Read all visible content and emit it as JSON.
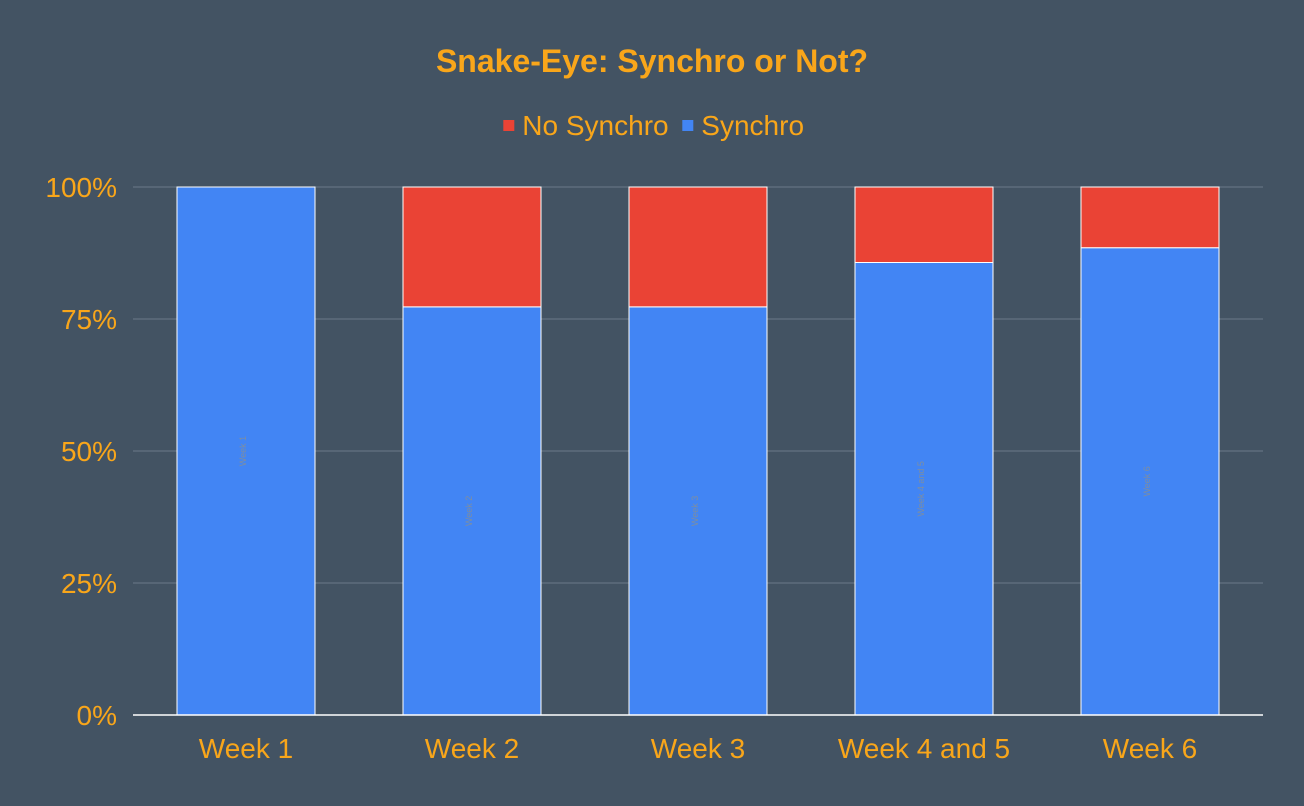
{
  "chart_data": {
    "type": "bar",
    "stacked": true,
    "normalized_percent": true,
    "title": "Snake-Eye: Synchro or Not?",
    "xlabel": "",
    "ylabel": "",
    "categories": [
      "Week 1",
      "Week 2",
      "Week 3",
      "Week 4 and 5",
      "Week 6"
    ],
    "series": [
      {
        "name": "Synchro",
        "color": "#4285f4",
        "values": [
          100,
          77.3,
          77.3,
          85.7,
          88.5
        ]
      },
      {
        "name": "No Synchro",
        "color": "#ea4335",
        "values": [
          0,
          22.7,
          22.7,
          14.3,
          11.5
        ]
      }
    ],
    "legend_order": [
      "No Synchro",
      "Synchro"
    ],
    "legend_position": "top-center",
    "yticks": [
      0,
      25,
      50,
      75,
      100
    ],
    "ytick_labels": [
      "0%",
      "25%",
      "50%",
      "75%",
      "100%"
    ],
    "ylim": [
      0,
      100
    ],
    "grid": true,
    "bar_inner_labels": [
      "Week 1",
      "Week 2",
      "Week 3",
      "Week 4 and 5",
      "Week 6"
    ],
    "colors": {
      "background": "#435363",
      "text": "#f9a61a",
      "grid": "#6b7a88",
      "axis": "#ffffff",
      "bar_border": "#ffffff",
      "inner_label": "#7e8ea0"
    }
  }
}
